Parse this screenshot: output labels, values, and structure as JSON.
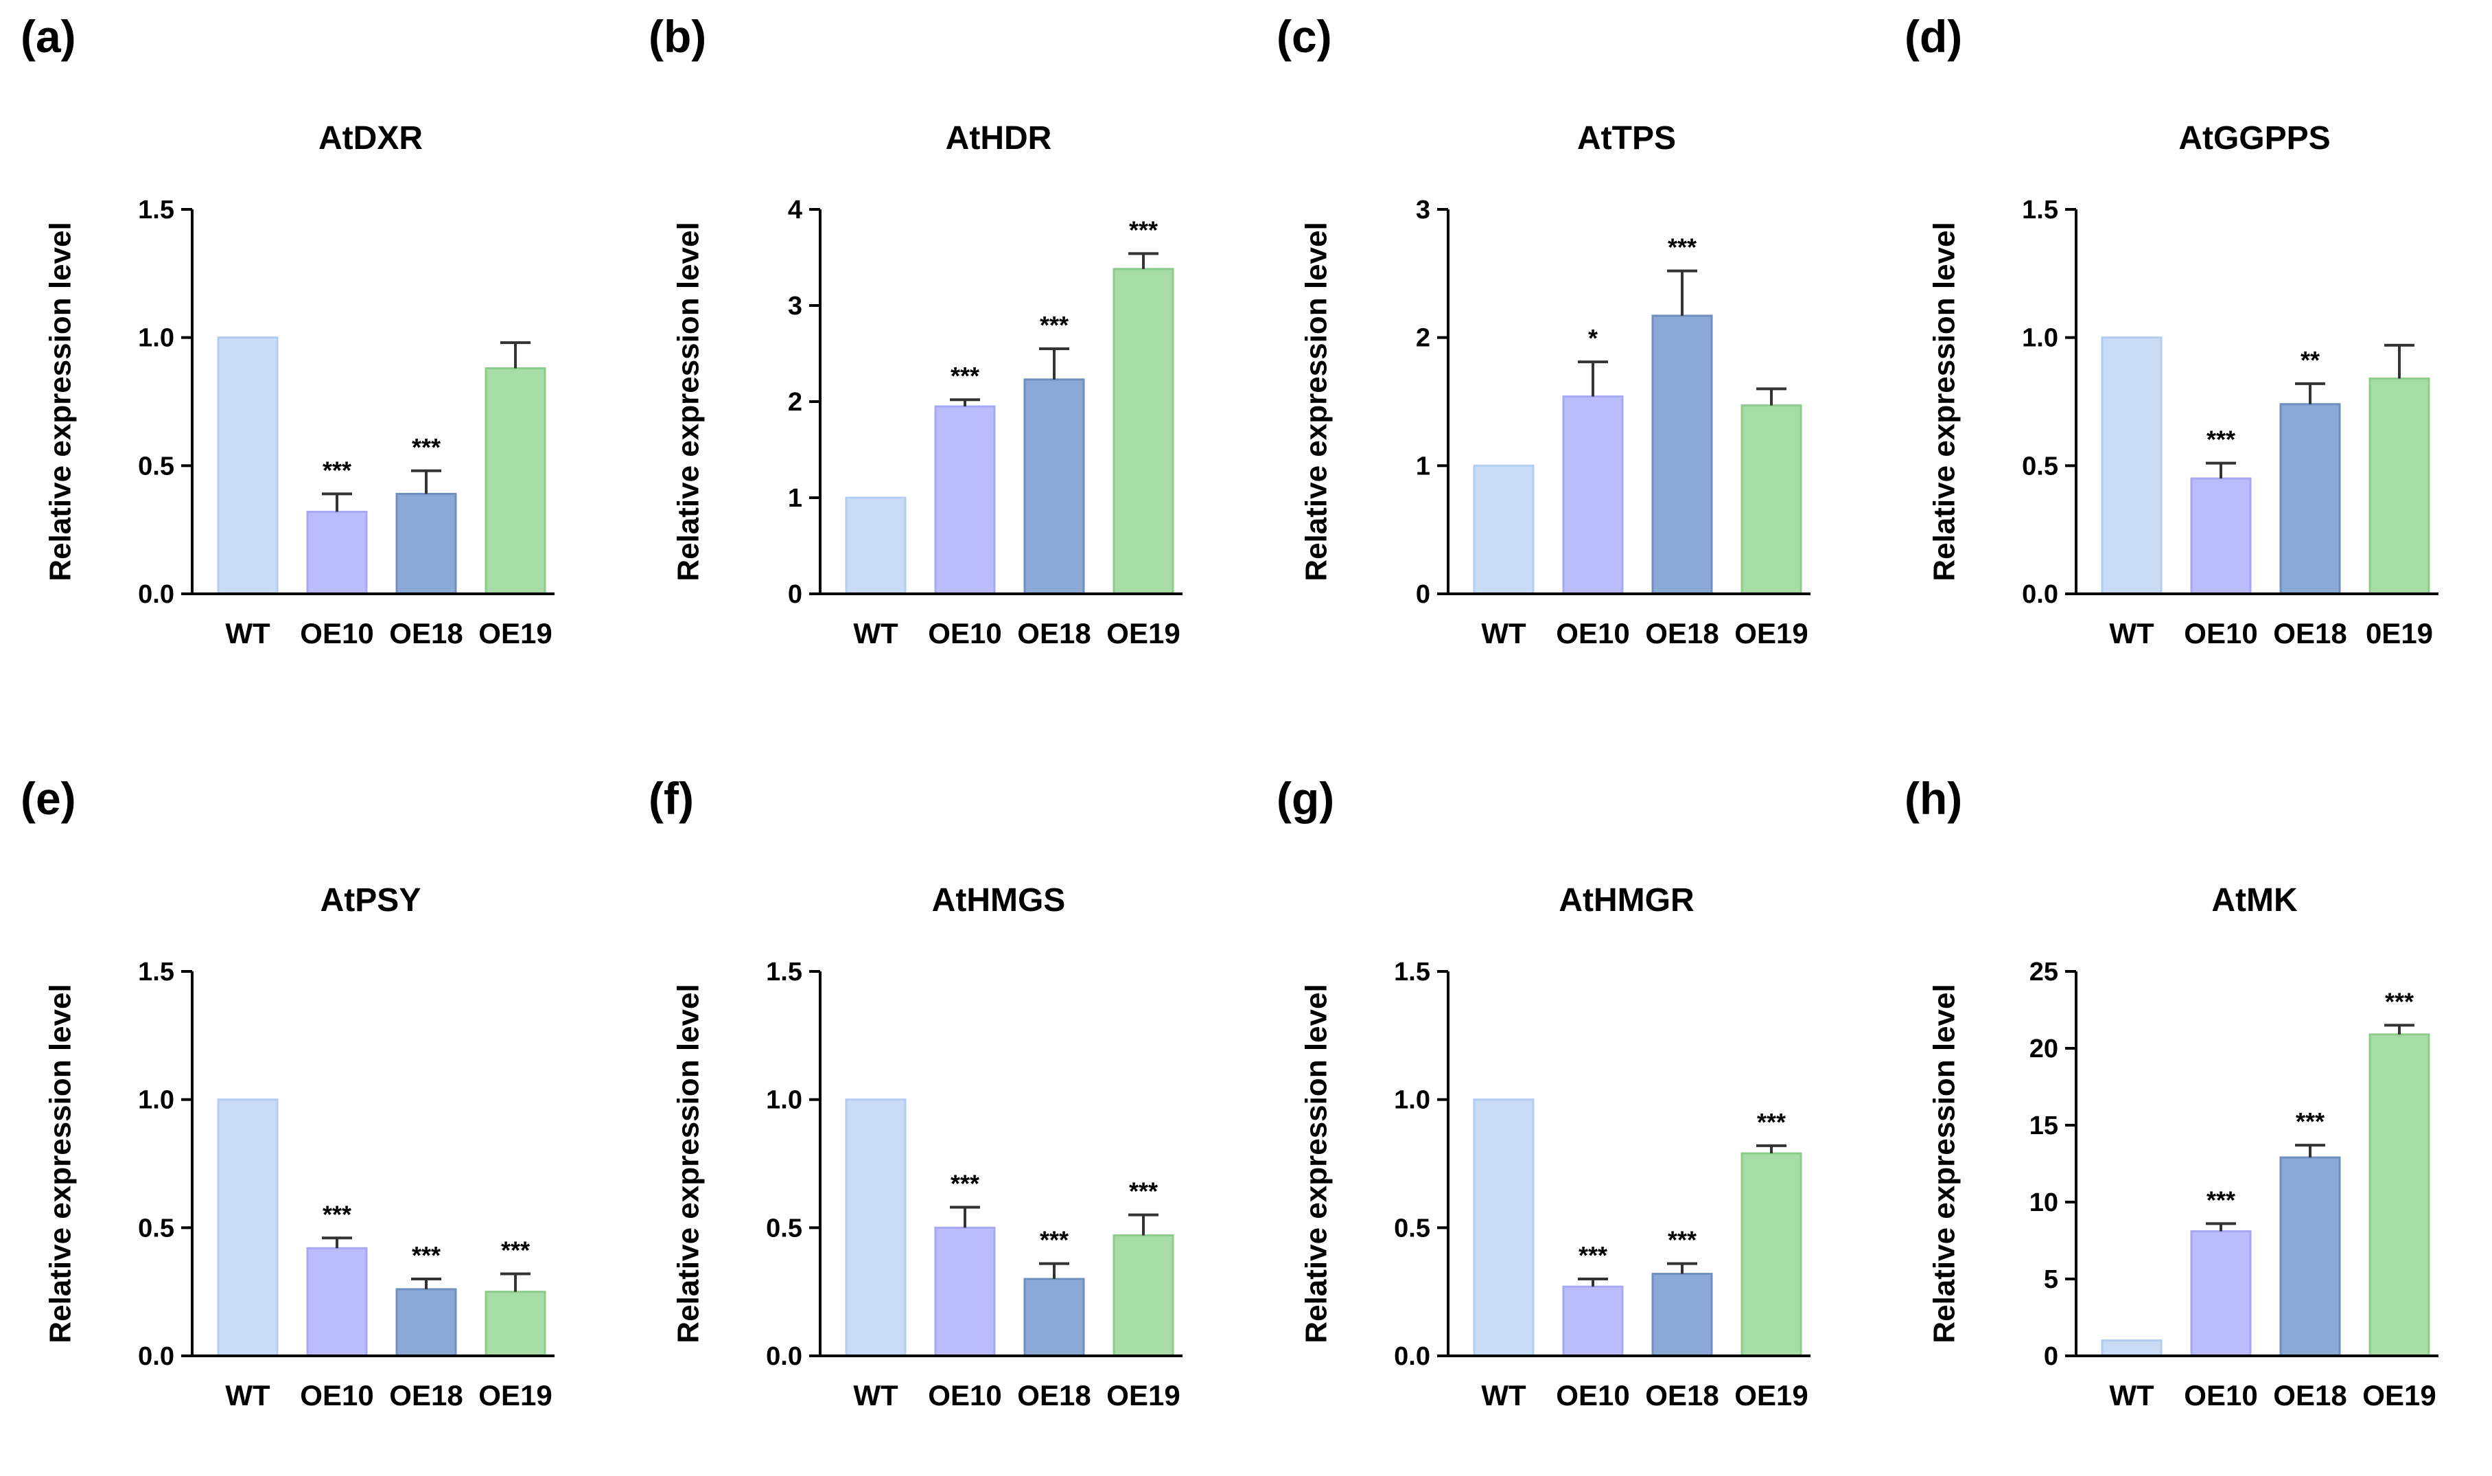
{
  "colors": {
    "WT": "#c8dcf8",
    "OE10": "#bbbcfc",
    "OE18": "#8ca9d5",
    "OE19": "#a8dca6",
    "OE10_edge": "#a6a8f4",
    "OE18_edge": "#6f8fbf",
    "OE19_edge": "#8ccc8a",
    "WT_edge": "#b3cdf2"
  },
  "chart_data": [
    {
      "type": "bar",
      "panel": "(a)",
      "title": "AtDXR",
      "ylabel": "Relative expression level",
      "categories": [
        "WT",
        "OE10",
        "OE18",
        "OE19"
      ],
      "values": [
        1.0,
        0.32,
        0.39,
        0.88
      ],
      "errors": [
        0,
        0.07,
        0.09,
        0.1
      ],
      "significance": [
        "",
        "***",
        "***",
        ""
      ],
      "ylim": [
        0,
        1.5
      ],
      "yticks": [
        "0.0",
        "0.5",
        "1.0",
        "1.5"
      ],
      "ytick_values": [
        0,
        0.5,
        1.0,
        1.5
      ]
    },
    {
      "type": "bar",
      "panel": "(b)",
      "title": "AtHDR",
      "ylabel": "Relative expression level",
      "categories": [
        "WT",
        "OE10",
        "OE18",
        "OE19"
      ],
      "values": [
        1.0,
        1.95,
        2.23,
        3.38
      ],
      "errors": [
        0,
        0.07,
        0.32,
        0.16
      ],
      "significance": [
        "",
        "***",
        "***",
        "***"
      ],
      "ylim": [
        0,
        4
      ],
      "yticks": [
        "0",
        "1",
        "2",
        "3",
        "4"
      ],
      "ytick_values": [
        0,
        1,
        2,
        3,
        4
      ]
    },
    {
      "type": "bar",
      "panel": "(c)",
      "title": "AtTPS",
      "ylabel": "Relative expression level",
      "categories": [
        "WT",
        "OE10",
        "OE18",
        "OE19"
      ],
      "values": [
        1.0,
        1.54,
        2.17,
        1.47
      ],
      "errors": [
        0,
        0.27,
        0.35,
        0.13
      ],
      "significance": [
        "",
        "*",
        "***",
        ""
      ],
      "ylim": [
        0,
        3
      ],
      "yticks": [
        "0",
        "1",
        "2",
        "3"
      ],
      "ytick_values": [
        0,
        1,
        2,
        3
      ]
    },
    {
      "type": "bar",
      "panel": "(d)",
      "title": "AtGGPPS",
      "ylabel": "Relative expression level",
      "categories": [
        "WT",
        "OE10",
        "OE18",
        "0E19"
      ],
      "values": [
        1.0,
        0.45,
        0.74,
        0.84
      ],
      "errors": [
        0,
        0.06,
        0.08,
        0.13
      ],
      "significance": [
        "",
        "***",
        "**",
        ""
      ],
      "ylim": [
        0,
        1.5
      ],
      "yticks": [
        "0.0",
        "0.5",
        "1.0",
        "1.5"
      ],
      "ytick_values": [
        0,
        0.5,
        1.0,
        1.5
      ]
    },
    {
      "type": "bar",
      "panel": "(e)",
      "title": "AtPSY",
      "ylabel": "Relative expression level",
      "categories": [
        "WT",
        "OE10",
        "OE18",
        "OE19"
      ],
      "values": [
        1.0,
        0.42,
        0.26,
        0.25
      ],
      "errors": [
        0,
        0.04,
        0.04,
        0.07
      ],
      "significance": [
        "",
        "***",
        "***",
        "***"
      ],
      "ylim": [
        0,
        1.5
      ],
      "yticks": [
        "0.0",
        "0.5",
        "1.0",
        "1.5"
      ],
      "ytick_values": [
        0,
        0.5,
        1.0,
        1.5
      ]
    },
    {
      "type": "bar",
      "panel": "(f)",
      "title": "AtHMGS",
      "ylabel": "Relative expression level",
      "categories": [
        "WT",
        "OE10",
        "OE18",
        "OE19"
      ],
      "values": [
        1.0,
        0.5,
        0.3,
        0.47
      ],
      "errors": [
        0,
        0.08,
        0.06,
        0.08
      ],
      "significance": [
        "",
        "***",
        "***",
        "***"
      ],
      "ylim": [
        0,
        1.5
      ],
      "yticks": [
        "0.0",
        "0.5",
        "1.0",
        "1.5"
      ],
      "ytick_values": [
        0,
        0.5,
        1.0,
        1.5
      ]
    },
    {
      "type": "bar",
      "panel": "(g)",
      "title": "AtHMGR",
      "ylabel": "Relative expression level",
      "categories": [
        "WT",
        "OE10",
        "OE18",
        "OE19"
      ],
      "values": [
        1.0,
        0.27,
        0.32,
        0.79
      ],
      "errors": [
        0,
        0.03,
        0.04,
        0.03
      ],
      "significance": [
        "",
        "***",
        "***",
        "***"
      ],
      "ylim": [
        0,
        1.5
      ],
      "yticks": [
        "0.0",
        "0.5",
        "1.0",
        "1.5"
      ],
      "ytick_values": [
        0,
        0.5,
        1.0,
        1.5
      ]
    },
    {
      "type": "bar",
      "panel": "(h)",
      "title": "AtMK",
      "ylabel": "Relative expression level",
      "categories": [
        "WT",
        "OE10",
        "OE18",
        "OE19"
      ],
      "values": [
        1.0,
        8.1,
        12.9,
        20.9
      ],
      "errors": [
        0,
        0.5,
        0.8,
        0.6
      ],
      "significance": [
        "",
        "***",
        "***",
        "***"
      ],
      "ylim": [
        0,
        25
      ],
      "yticks": [
        "0",
        "5",
        "10",
        "15",
        "20",
        "25"
      ],
      "ytick_values": [
        0,
        5,
        10,
        15,
        20,
        25
      ]
    }
  ]
}
